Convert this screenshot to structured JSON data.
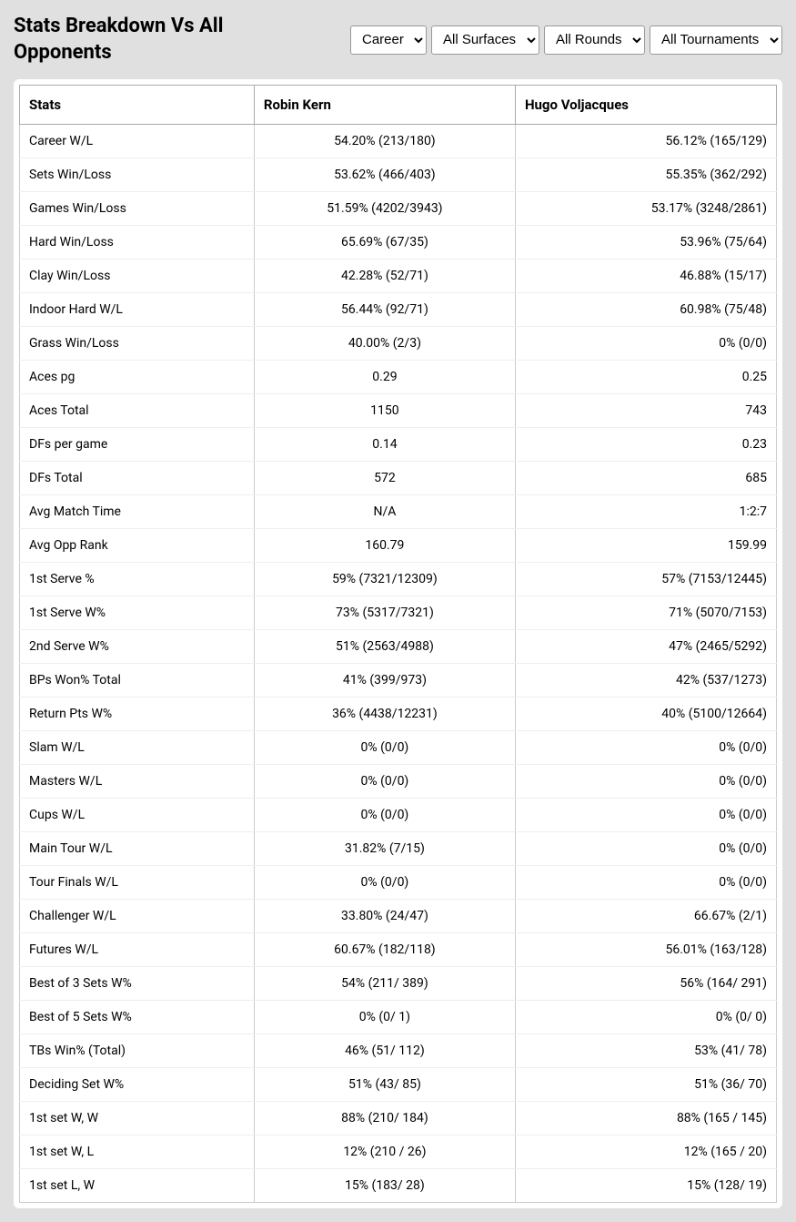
{
  "header": {
    "title": "Stats Breakdown Vs All Opponents"
  },
  "filters": {
    "period": {
      "value": "Career",
      "options": [
        "Career"
      ]
    },
    "surface": {
      "value": "All Surfaces",
      "options": [
        "All Surfaces"
      ]
    },
    "round": {
      "value": "All Rounds",
      "options": [
        "All Rounds"
      ]
    },
    "tournament": {
      "value": "All Tournaments",
      "options": [
        "All Tournaments"
      ]
    }
  },
  "columns": {
    "stats": "Stats",
    "player1": "Robin Kern",
    "player2": "Hugo Voljacques"
  },
  "rows": [
    {
      "stat": "Career W/L",
      "p1": "54.20% (213/180)",
      "p2": "56.12% (165/129)"
    },
    {
      "stat": "Sets Win/Loss",
      "p1": "53.62% (466/403)",
      "p2": "55.35% (362/292)"
    },
    {
      "stat": "Games Win/Loss",
      "p1": "51.59% (4202/3943)",
      "p2": "53.17% (3248/2861)"
    },
    {
      "stat": "Hard Win/Loss",
      "p1": "65.69% (67/35)",
      "p2": "53.96% (75/64)"
    },
    {
      "stat": "Clay Win/Loss",
      "p1": "42.28% (52/71)",
      "p2": "46.88% (15/17)"
    },
    {
      "stat": "Indoor Hard W/L",
      "p1": "56.44% (92/71)",
      "p2": "60.98% (75/48)"
    },
    {
      "stat": "Grass Win/Loss",
      "p1": "40.00% (2/3)",
      "p2": "0% (0/0)"
    },
    {
      "stat": "Aces pg",
      "p1": "0.29",
      "p2": "0.25"
    },
    {
      "stat": "Aces Total",
      "p1": "1150",
      "p2": "743"
    },
    {
      "stat": "DFs per game",
      "p1": "0.14",
      "p2": "0.23"
    },
    {
      "stat": "DFs Total",
      "p1": "572",
      "p2": "685"
    },
    {
      "stat": "Avg Match Time",
      "p1": "N/A",
      "p2": "1:2:7"
    },
    {
      "stat": "Avg Opp Rank",
      "p1": "160.79",
      "p2": "159.99"
    },
    {
      "stat": "1st Serve %",
      "p1": "59% (7321/12309)",
      "p2": "57% (7153/12445)"
    },
    {
      "stat": "1st Serve W%",
      "p1": "73% (5317/7321)",
      "p2": "71% (5070/7153)"
    },
    {
      "stat": "2nd Serve W%",
      "p1": "51% (2563/4988)",
      "p2": "47% (2465/5292)"
    },
    {
      "stat": "BPs Won% Total",
      "p1": "41% (399/973)",
      "p2": "42% (537/1273)"
    },
    {
      "stat": "Return Pts W%",
      "p1": "36% (4438/12231)",
      "p2": "40% (5100/12664)"
    },
    {
      "stat": "Slam W/L",
      "p1": "0% (0/0)",
      "p2": "0% (0/0)"
    },
    {
      "stat": "Masters W/L",
      "p1": "0% (0/0)",
      "p2": "0% (0/0)"
    },
    {
      "stat": "Cups W/L",
      "p1": "0% (0/0)",
      "p2": "0% (0/0)"
    },
    {
      "stat": "Main Tour W/L",
      "p1": "31.82% (7/15)",
      "p2": "0% (0/0)"
    },
    {
      "stat": "Tour Finals W/L",
      "p1": "0% (0/0)",
      "p2": "0% (0/0)"
    },
    {
      "stat": "Challenger W/L",
      "p1": "33.80% (24/47)",
      "p2": "66.67% (2/1)"
    },
    {
      "stat": "Futures W/L",
      "p1": "60.67% (182/118)",
      "p2": "56.01% (163/128)"
    },
    {
      "stat": "Best of 3 Sets W%",
      "p1": "54% (211/ 389)",
      "p2": "56% (164/ 291)"
    },
    {
      "stat": "Best of 5 Sets W%",
      "p1": "0% (0/ 1)",
      "p2": "0% (0/ 0)"
    },
    {
      "stat": "TBs Win% (Total)",
      "p1": "46% (51/ 112)",
      "p2": "53% (41/ 78)"
    },
    {
      "stat": "Deciding Set W%",
      "p1": "51% (43/ 85)",
      "p2": "51% (36/ 70)"
    },
    {
      "stat": "1st set W, W",
      "p1": "88% (210/ 184)",
      "p2": "88% (165 / 145)"
    },
    {
      "stat": "1st set W, L",
      "p1": "12% (210 / 26)",
      "p2": "12% (165 / 20)"
    },
    {
      "stat": "1st set L, W",
      "p1": "15% (183/ 28)",
      "p2": "15% (128/ 19)"
    }
  ]
}
